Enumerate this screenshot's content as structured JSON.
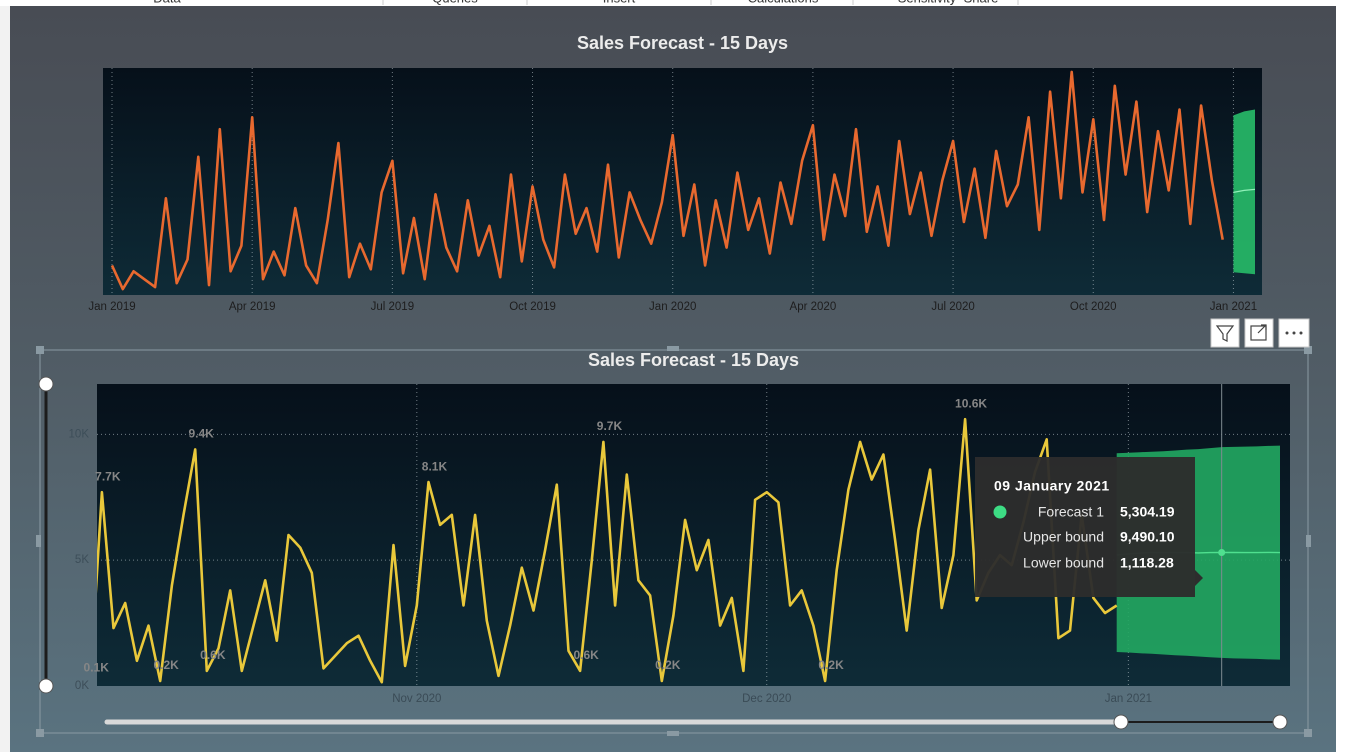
{
  "ribbon": [
    "Data",
    "Queries",
    "Insert",
    "Calculations",
    "Sensitivity",
    "Share"
  ],
  "chart_data": [
    {
      "type": "line",
      "title": "Sales Forecast - 15 Days",
      "categories": [
        "Jan 2019",
        null,
        null,
        null,
        null,
        null,
        null,
        null,
        null,
        null,
        null,
        null,
        null,
        "Apr 2019",
        null,
        null,
        null,
        null,
        null,
        null,
        null,
        null,
        null,
        null,
        null,
        null,
        "Jul 2019",
        null,
        null,
        null,
        null,
        null,
        null,
        null,
        null,
        null,
        null,
        null,
        null,
        "Oct 2019",
        null,
        null,
        null,
        null,
        null,
        null,
        null,
        null,
        null,
        null,
        null,
        null,
        "Jan 2020",
        null,
        null,
        null,
        null,
        null,
        null,
        null,
        null,
        null,
        null,
        null,
        null,
        "Apr 2020",
        null,
        null,
        null,
        null,
        null,
        null,
        null,
        null,
        null,
        null,
        null,
        null,
        "Jul 2020",
        null,
        null,
        null,
        null,
        null,
        null,
        null,
        null,
        null,
        null,
        null,
        null,
        "Oct 2020",
        null,
        null,
        null,
        null,
        null,
        null,
        null,
        null,
        null,
        null,
        null,
        null,
        "Jan 2021",
        null,
        null
      ],
      "values": [
        1500,
        300,
        1200,
        800,
        400,
        4900,
        600,
        1800,
        7000,
        500,
        8400,
        1200,
        2500,
        9000,
        800,
        2200,
        1000,
        4400,
        1500,
        600,
        3800,
        7700,
        900,
        2600,
        1300,
        5200,
        6800,
        1100,
        3900,
        800,
        5100,
        2400,
        1200,
        4800,
        2000,
        3500,
        900,
        6100,
        1700,
        5500,
        2800,
        1400,
        6100,
        3100,
        4400,
        2200,
        6600,
        1900,
        5200,
        3800,
        2600,
        4700,
        8100,
        3000,
        5600,
        1500,
        4800,
        2400,
        6200,
        3300,
        4900,
        2100,
        5700,
        3600,
        6800,
        8600,
        2800,
        6100,
        4000,
        8400,
        3200,
        5500,
        2500,
        7800,
        4100,
        6200,
        3000,
        5800,
        7800,
        3700,
        6400,
        2900,
        7300,
        4500,
        5600,
        9000,
        3300,
        10300,
        4900,
        11300,
        5200,
        8900,
        3800,
        10600,
        6100,
        9800,
        4200,
        8300,
        5300,
        9400,
        3600,
        9600,
        5800,
        2800,
        null,
        null,
        null
      ],
      "color": "#e8692f",
      "forecast": {
        "color": "#26b466",
        "values": [
          null,
          null,
          null,
          null,
          null,
          null,
          null,
          null,
          null,
          null,
          null,
          null,
          null,
          null,
          null,
          null,
          null,
          null,
          null,
          null,
          null,
          null,
          null,
          null,
          null,
          null,
          null,
          null,
          null,
          null,
          null,
          null,
          null,
          null,
          null,
          null,
          null,
          null,
          null,
          null,
          null,
          null,
          null,
          null,
          null,
          null,
          null,
          null,
          null,
          null,
          null,
          null,
          null,
          null,
          null,
          null,
          null,
          null,
          null,
          null,
          null,
          null,
          null,
          null,
          null,
          null,
          null,
          null,
          null,
          null,
          null,
          null,
          null,
          null,
          null,
          null,
          null,
          null,
          null,
          null,
          null,
          null,
          null,
          null,
          null,
          null,
          null,
          null,
          null,
          null,
          null,
          null,
          null,
          null,
          null,
          null,
          null,
          null,
          null,
          null,
          null,
          null,
          null,
          null,
          5200,
          5300,
          5350
        ],
        "upper": [
          null,
          null,
          null,
          null,
          null,
          null,
          null,
          null,
          null,
          null,
          null,
          null,
          null,
          null,
          null,
          null,
          null,
          null,
          null,
          null,
          null,
          null,
          null,
          null,
          null,
          null,
          null,
          null,
          null,
          null,
          null,
          null,
          null,
          null,
          null,
          null,
          null,
          null,
          null,
          null,
          null,
          null,
          null,
          null,
          null,
          null,
          null,
          null,
          null,
          null,
          null,
          null,
          null,
          null,
          null,
          null,
          null,
          null,
          null,
          null,
          null,
          null,
          null,
          null,
          null,
          null,
          null,
          null,
          null,
          null,
          null,
          null,
          null,
          null,
          null,
          null,
          null,
          null,
          null,
          null,
          null,
          null,
          null,
          null,
          null,
          null,
          null,
          null,
          null,
          null,
          null,
          null,
          null,
          null,
          null,
          null,
          null,
          null,
          null,
          null,
          null,
          null,
          null,
          null,
          9100,
          9300,
          9400
        ],
        "lower": [
          null,
          null,
          null,
          null,
          null,
          null,
          null,
          null,
          null,
          null,
          null,
          null,
          null,
          null,
          null,
          null,
          null,
          null,
          null,
          null,
          null,
          null,
          null,
          null,
          null,
          null,
          null,
          null,
          null,
          null,
          null,
          null,
          null,
          null,
          null,
          null,
          null,
          null,
          null,
          null,
          null,
          null,
          null,
          null,
          null,
          null,
          null,
          null,
          null,
          null,
          null,
          null,
          null,
          null,
          null,
          null,
          null,
          null,
          null,
          null,
          null,
          null,
          null,
          null,
          null,
          null,
          null,
          null,
          null,
          null,
          null,
          null,
          null,
          null,
          null,
          null,
          null,
          null,
          null,
          null,
          null,
          null,
          null,
          null,
          null,
          null,
          null,
          null,
          null,
          null,
          null,
          null,
          null,
          null,
          null,
          null,
          null,
          null,
          null,
          null,
          null,
          null,
          null,
          null,
          1150,
          1100,
          1050
        ]
      },
      "ylim": [
        0,
        11500
      ],
      "grid": "x"
    },
    {
      "type": "line",
      "title": "Sales Forecast - 15 Days",
      "categories": [
        null,
        null,
        null,
        null,
        null,
        null,
        null,
        null,
        null,
        null,
        null,
        null,
        null,
        null,
        null,
        null,
        null,
        null,
        null,
        null,
        null,
        null,
        null,
        null,
        null,
        null,
        null,
        null,
        "Nov 2020",
        null,
        null,
        null,
        null,
        null,
        null,
        null,
        null,
        null,
        null,
        null,
        null,
        null,
        null,
        null,
        null,
        null,
        null,
        null,
        null,
        null,
        null,
        null,
        null,
        null,
        null,
        null,
        null,
        null,
        "Dec 2020",
        null,
        null,
        null,
        null,
        null,
        null,
        null,
        null,
        null,
        null,
        null,
        null,
        null,
        null,
        null,
        null,
        null,
        null,
        null,
        null,
        null,
        null,
        null,
        null,
        null,
        null,
        null,
        null,
        null,
        null,
        "Jan 2021",
        null,
        null,
        null,
        null,
        null,
        null,
        null,
        null,
        null,
        null,
        null,
        null,
        null
      ],
      "values": [
        100,
        7700,
        2300,
        3300,
        1000,
        2400,
        200,
        4000,
        6800,
        9400,
        600,
        1500,
        3800,
        600,
        2400,
        4200,
        1800,
        6000,
        5500,
        4500,
        700,
        1200,
        1700,
        2000,
        1000,
        150,
        5600,
        800,
        3200,
        8100,
        6400,
        6800,
        3200,
        6800,
        2600,
        400,
        2400,
        4700,
        3000,
        5400,
        8000,
        1400,
        600,
        5000,
        9700,
        3200,
        8400,
        4200,
        3600,
        200,
        2800,
        6600,
        4600,
        5800,
        2400,
        3500,
        600,
        7400,
        7700,
        7300,
        3200,
        3800,
        2400,
        200,
        4600,
        7800,
        9700,
        8200,
        9200,
        5800,
        2200,
        6200,
        8600,
        3100,
        5200,
        10600,
        3400,
        4500,
        5200,
        4800,
        6500,
        8500,
        9800,
        1900,
        2200,
        6800,
        3500,
        2900,
        3200,
        null,
        null,
        null,
        null,
        null,
        null,
        null,
        null,
        null,
        null,
        null,
        null,
        null,
        null
      ],
      "value_labels": [
        "0.1K",
        "7.7K",
        null,
        null,
        null,
        null,
        "0.2K",
        null,
        null,
        "9.4K",
        "0.6K",
        null,
        null,
        null,
        null,
        null,
        null,
        null,
        null,
        null,
        null,
        null,
        null,
        null,
        null,
        null,
        null,
        null,
        null,
        "8.1K",
        null,
        null,
        null,
        null,
        null,
        null,
        null,
        null,
        null,
        null,
        null,
        null,
        "0.6K",
        null,
        "9.7K",
        null,
        null,
        null,
        null,
        "0.2K",
        null,
        null,
        null,
        null,
        null,
        null,
        null,
        null,
        null,
        null,
        null,
        null,
        null,
        "0.2K",
        null,
        null,
        null,
        null,
        null,
        null,
        null,
        null,
        null,
        null,
        null,
        "10.6K",
        null,
        null,
        null,
        null,
        null,
        null,
        null,
        null,
        null,
        null,
        null,
        null,
        null,
        null,
        null,
        null,
        null,
        null,
        null,
        null,
        null,
        null,
        null,
        null,
        null,
        null,
        null
      ],
      "color": "#e9c83b",
      "forecast": {
        "color": "#22a862",
        "values": [
          null,
          null,
          null,
          null,
          null,
          null,
          null,
          null,
          null,
          null,
          null,
          null,
          null,
          null,
          null,
          null,
          null,
          null,
          null,
          null,
          null,
          null,
          null,
          null,
          null,
          null,
          null,
          null,
          null,
          null,
          null,
          null,
          null,
          null,
          null,
          null,
          null,
          null,
          null,
          null,
          null,
          null,
          null,
          null,
          null,
          null,
          null,
          null,
          null,
          null,
          null,
          null,
          null,
          null,
          null,
          null,
          null,
          null,
          null,
          null,
          null,
          null,
          null,
          null,
          null,
          null,
          null,
          null,
          null,
          null,
          null,
          null,
          null,
          null,
          null,
          null,
          null,
          null,
          null,
          null,
          null,
          null,
          null,
          null,
          null,
          null,
          null,
          null,
          5200,
          5250,
          5280,
          5300,
          5300,
          5310,
          5300,
          5290,
          5300,
          5304.19,
          5310,
          5300,
          5300,
          5310,
          5300
        ],
        "upper": [
          null,
          null,
          null,
          null,
          null,
          null,
          null,
          null,
          null,
          null,
          null,
          null,
          null,
          null,
          null,
          null,
          null,
          null,
          null,
          null,
          null,
          null,
          null,
          null,
          null,
          null,
          null,
          null,
          null,
          null,
          null,
          null,
          null,
          null,
          null,
          null,
          null,
          null,
          null,
          null,
          null,
          null,
          null,
          null,
          null,
          null,
          null,
          null,
          null,
          null,
          null,
          null,
          null,
          null,
          null,
          null,
          null,
          null,
          null,
          null,
          null,
          null,
          null,
          null,
          null,
          null,
          null,
          null,
          null,
          null,
          null,
          null,
          null,
          null,
          null,
          null,
          null,
          null,
          null,
          null,
          null,
          null,
          null,
          null,
          null,
          null,
          null,
          null,
          9250,
          9270,
          9290,
          9310,
          9330,
          9360,
          9390,
          9410,
          9450,
          9490.1,
          9500,
          9510,
          9520,
          9540,
          9550
        ],
        "lower": [
          null,
          null,
          null,
          null,
          null,
          null,
          null,
          null,
          null,
          null,
          null,
          null,
          null,
          null,
          null,
          null,
          null,
          null,
          null,
          null,
          null,
          null,
          null,
          null,
          null,
          null,
          null,
          null,
          null,
          null,
          null,
          null,
          null,
          null,
          null,
          null,
          null,
          null,
          null,
          null,
          null,
          null,
          null,
          null,
          null,
          null,
          null,
          null,
          null,
          null,
          null,
          null,
          null,
          null,
          null,
          null,
          null,
          null,
          null,
          null,
          null,
          null,
          null,
          null,
          null,
          null,
          null,
          null,
          null,
          null,
          null,
          null,
          null,
          null,
          null,
          null,
          null,
          null,
          null,
          null,
          null,
          null,
          null,
          null,
          null,
          null,
          null,
          null,
          1350,
          1330,
          1300,
          1280,
          1250,
          1220,
          1200,
          1170,
          1140,
          1118.28,
          1100,
          1090,
          1080,
          1060,
          1050
        ]
      },
      "ylim": [
        0,
        12000
      ],
      "yticks": [
        {
          "value": 0,
          "label": "0K"
        },
        {
          "value": 5000,
          "label": "5K"
        },
        {
          "value": 10000,
          "label": "10K"
        }
      ],
      "grid": "both"
    }
  ],
  "tooltip": {
    "title": "09 January 2021",
    "rows": [
      {
        "label": "Forecast 1",
        "value": "5,304.19"
      },
      {
        "label": "Upper bound",
        "value": "9,490.10"
      },
      {
        "label": "Lower bound",
        "value": "1,118.28"
      }
    ]
  }
}
